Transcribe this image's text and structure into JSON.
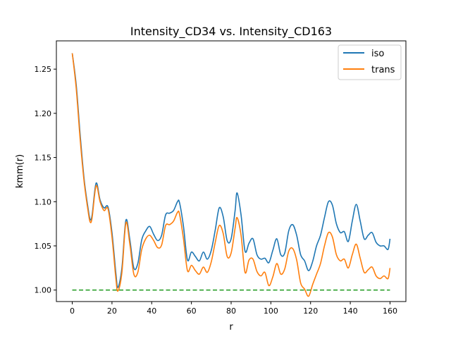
{
  "chart_data": {
    "type": "line",
    "title": "Intensity_CD34 vs. Intensity_CD163",
    "xlabel": "r",
    "ylabel": "kmm(r)",
    "xlim": [
      -8,
      168
    ],
    "ylim": [
      0.987,
      1.282
    ],
    "xticks": [
      "0",
      "20",
      "40",
      "60",
      "80",
      "100",
      "120",
      "140",
      "160"
    ],
    "yticks": [
      "1.00",
      "1.05",
      "1.10",
      "1.15",
      "1.20",
      "1.25"
    ],
    "grid": false,
    "legend_position": "top-right",
    "series": [
      {
        "name": "iso",
        "color": "#1f77b4",
        "x": [
          0,
          2,
          4,
          6,
          8,
          9,
          10,
          12,
          14,
          16,
          18,
          20,
          22,
          23,
          25,
          27,
          29,
          31,
          33,
          35,
          37,
          39,
          41,
          43,
          45,
          47,
          49,
          51,
          53,
          54,
          56,
          58,
          60,
          62,
          64,
          66,
          68,
          70,
          72,
          74,
          76,
          78,
          80,
          82,
          83,
          85,
          87,
          89,
          91,
          93,
          95,
          97,
          99,
          101,
          103,
          105,
          107,
          109,
          111,
          113,
          115,
          117,
          119,
          121,
          123,
          125,
          127,
          129,
          131,
          133,
          135,
          137,
          139,
          141,
          143,
          145,
          147,
          149,
          151,
          153,
          155,
          157,
          159,
          160
        ],
        "y": [
          1.268,
          1.232,
          1.175,
          1.125,
          1.092,
          1.08,
          1.085,
          1.121,
          1.102,
          1.093,
          1.094,
          1.065,
          1.018,
          1.003,
          1.025,
          1.079,
          1.057,
          1.025,
          1.03,
          1.057,
          1.067,
          1.072,
          1.063,
          1.056,
          1.062,
          1.085,
          1.087,
          1.09,
          1.1,
          1.099,
          1.072,
          1.034,
          1.043,
          1.038,
          1.033,
          1.043,
          1.035,
          1.045,
          1.068,
          1.093,
          1.083,
          1.056,
          1.058,
          1.09,
          1.11,
          1.085,
          1.044,
          1.053,
          1.058,
          1.04,
          1.035,
          1.036,
          1.031,
          1.045,
          1.058,
          1.04,
          1.042,
          1.067,
          1.074,
          1.062,
          1.04,
          1.033,
          1.022,
          1.032,
          1.05,
          1.062,
          1.082,
          1.1,
          1.096,
          1.075,
          1.065,
          1.066,
          1.055,
          1.078,
          1.097,
          1.078,
          1.058,
          1.062,
          1.065,
          1.054,
          1.05,
          1.05,
          1.046,
          1.058
        ]
      },
      {
        "name": "trans",
        "color": "#ff7f0e",
        "x": [
          0,
          2,
          4,
          6,
          8,
          9,
          10,
          12,
          14,
          16,
          18,
          20,
          22,
          23,
          25,
          27,
          29,
          31,
          33,
          35,
          37,
          39,
          41,
          43,
          45,
          47,
          49,
          51,
          53,
          54,
          56,
          58,
          60,
          62,
          64,
          66,
          68,
          70,
          72,
          74,
          76,
          78,
          80,
          82,
          83,
          85,
          87,
          89,
          91,
          93,
          95,
          97,
          99,
          101,
          103,
          105,
          107,
          109,
          111,
          113,
          115,
          117,
          119,
          121,
          123,
          125,
          127,
          129,
          131,
          133,
          135,
          137,
          139,
          141,
          143,
          145,
          147,
          149,
          151,
          153,
          155,
          157,
          159,
          160
        ],
        "y": [
          1.268,
          1.228,
          1.17,
          1.122,
          1.089,
          1.077,
          1.082,
          1.118,
          1.1,
          1.09,
          1.092,
          1.06,
          1.012,
          0.999,
          1.02,
          1.076,
          1.052,
          1.018,
          1.02,
          1.046,
          1.058,
          1.062,
          1.056,
          1.048,
          1.051,
          1.073,
          1.074,
          1.078,
          1.088,
          1.086,
          1.058,
          1.022,
          1.028,
          1.022,
          1.018,
          1.026,
          1.02,
          1.032,
          1.054,
          1.073,
          1.064,
          1.038,
          1.042,
          1.07,
          1.082,
          1.062,
          1.02,
          1.034,
          1.035,
          1.021,
          1.016,
          1.02,
          1.005,
          1.015,
          1.03,
          1.018,
          1.024,
          1.044,
          1.047,
          1.034,
          1.008,
          1.001,
          0.993,
          1.006,
          1.018,
          1.03,
          1.05,
          1.065,
          1.06,
          1.04,
          1.033,
          1.035,
          1.025,
          1.04,
          1.052,
          1.036,
          1.02,
          1.023,
          1.026,
          1.016,
          1.013,
          1.016,
          1.013,
          1.025
        ]
      },
      {
        "color": "#2ca02c",
        "linestyle": "dashed",
        "x": [
          0,
          160
        ],
        "y": [
          1.0,
          1.0
        ]
      }
    ]
  }
}
